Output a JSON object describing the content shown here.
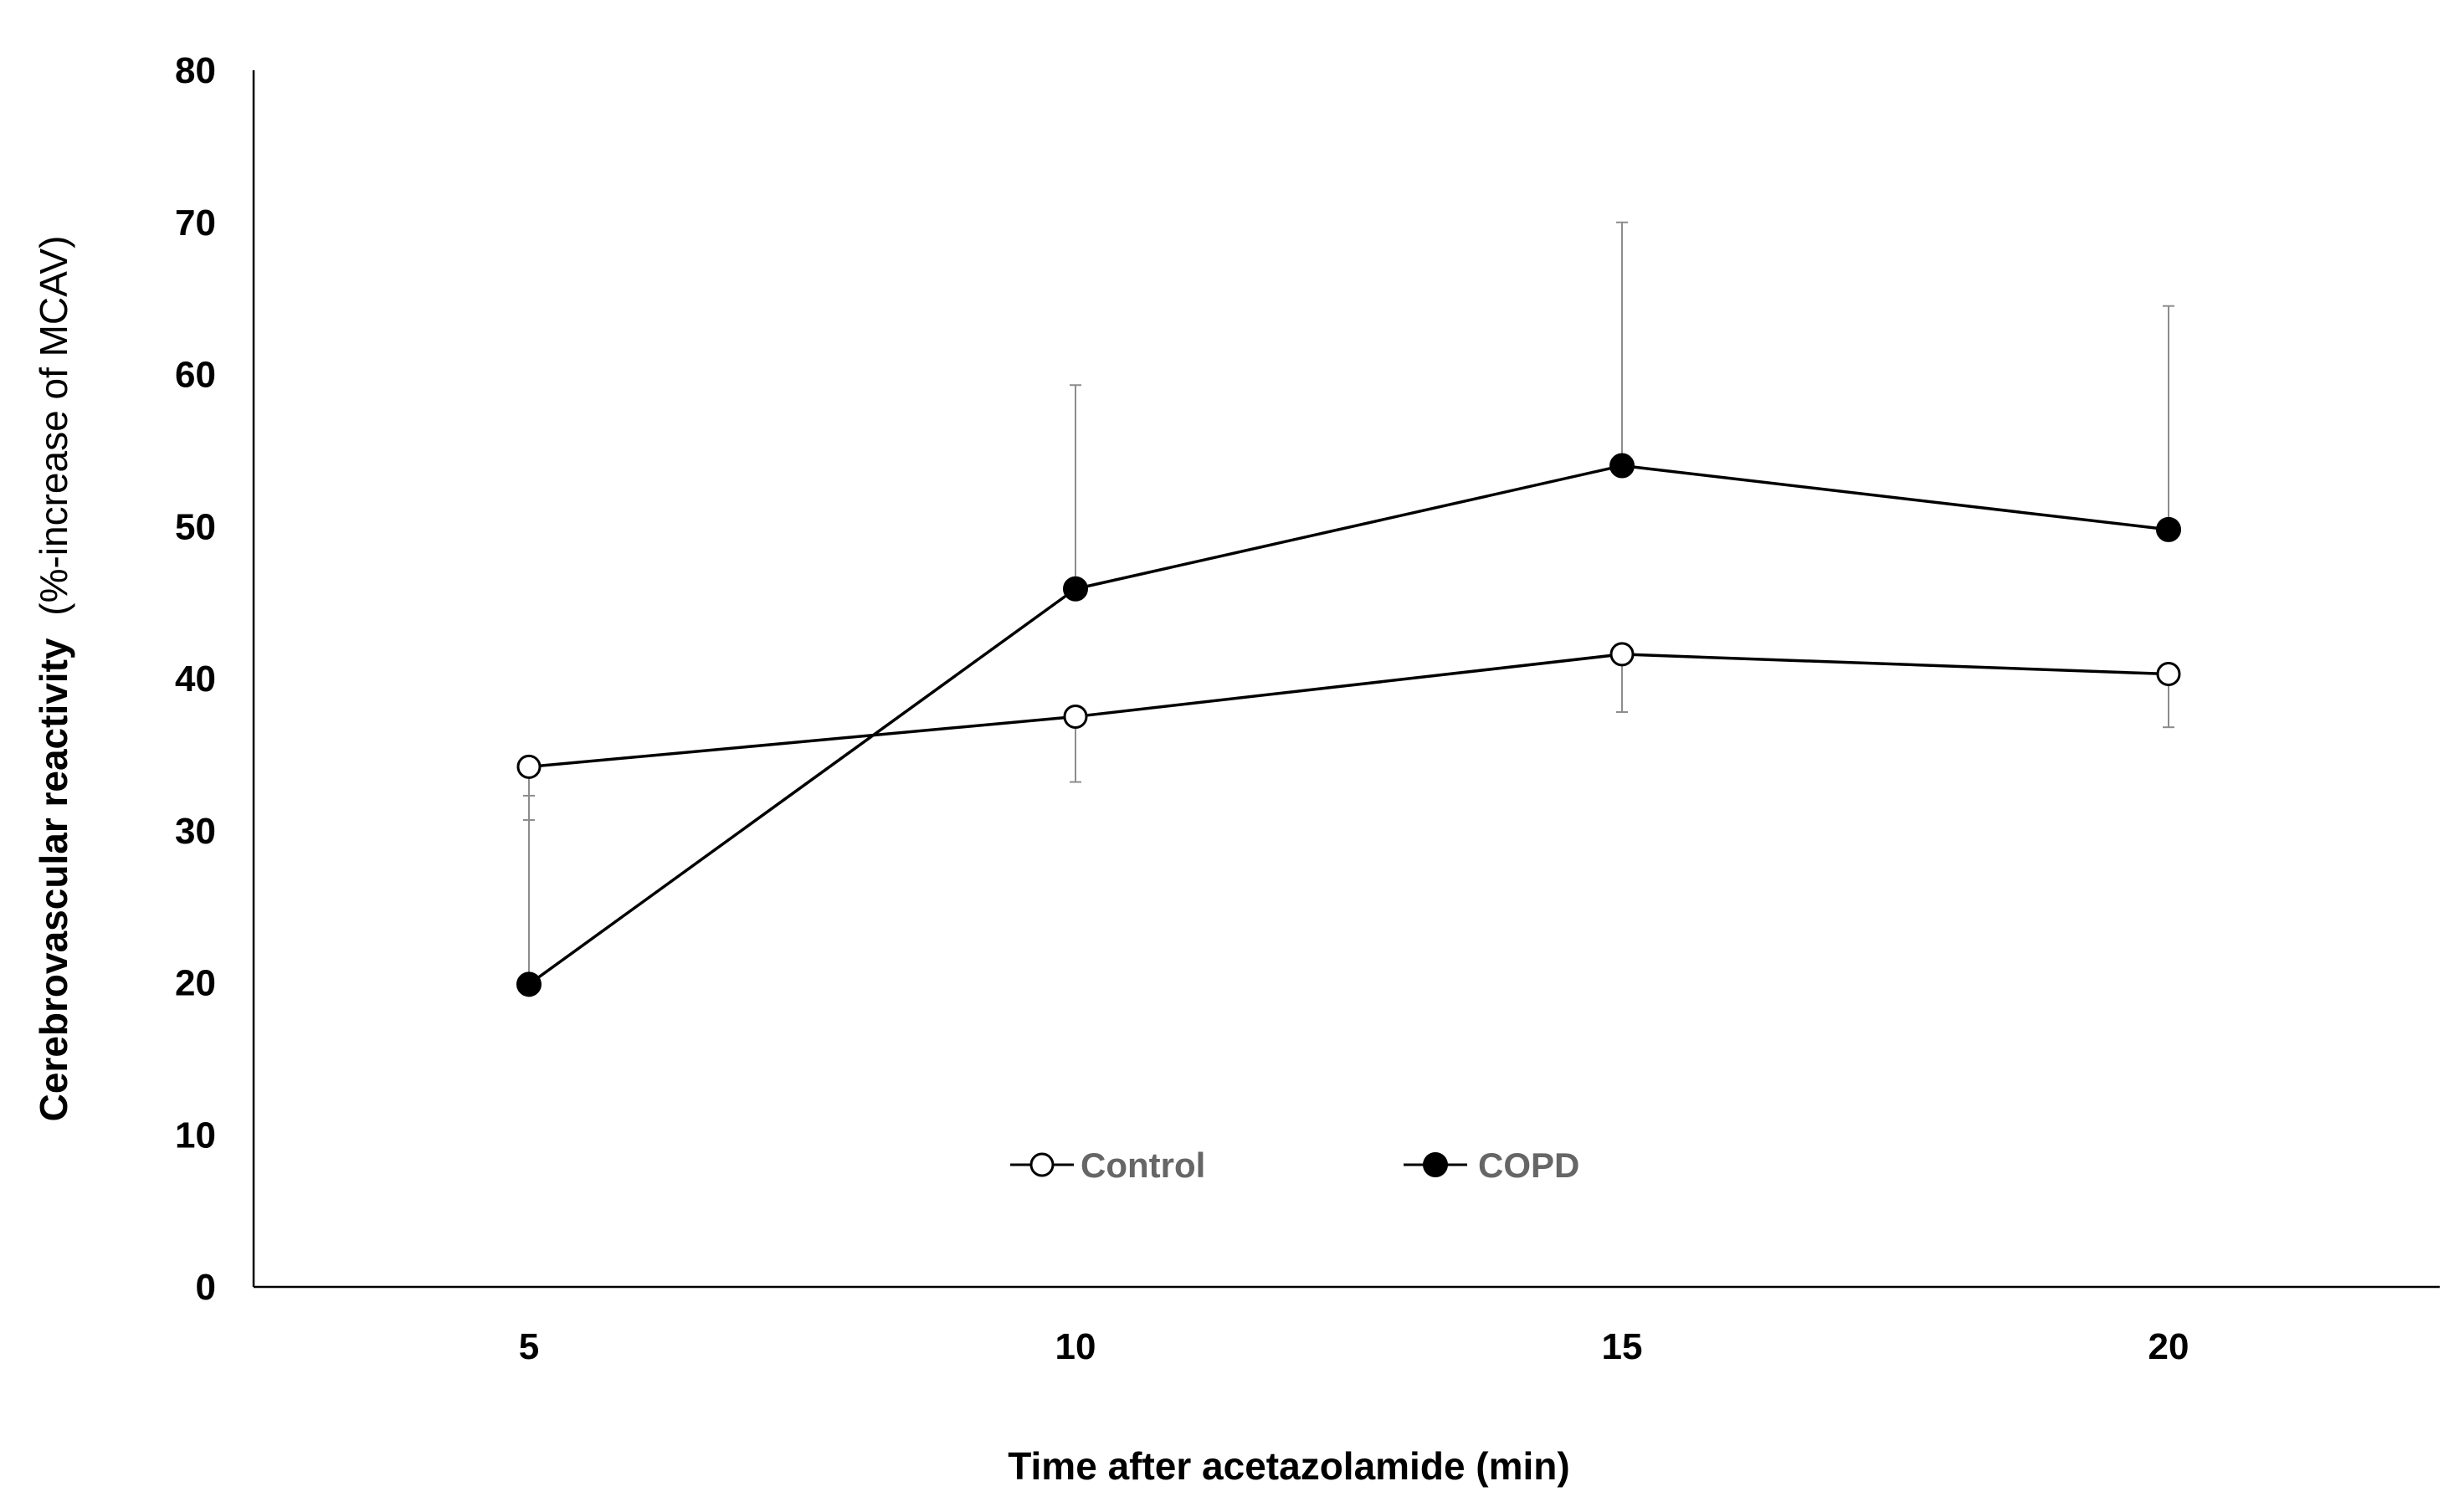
{
  "chart_data": {
    "type": "line",
    "title": "",
    "xlabel": "Time after acetazolamide (min)",
    "ylabel": "Cerebrovascular reactivity",
    "ylabel_suffix": "(%-increase of MCAV)",
    "x": [
      5,
      10,
      15,
      20
    ],
    "x_tick_labels": [
      "5",
      "10",
      "15",
      "20"
    ],
    "ylim": [
      0,
      80
    ],
    "y_ticks": [
      0,
      10,
      20,
      30,
      40,
      50,
      60,
      70,
      80
    ],
    "grid": false,
    "legend_position": "bottom-center",
    "series": [
      {
        "name": "Control",
        "marker": "open-circle",
        "color": "#000000",
        "values": [
          34.2,
          37.5,
          41.6,
          40.3
        ],
        "error_upper": [
          null,
          null,
          null,
          null
        ],
        "error_lower": [
          3.5,
          4.3,
          3.8,
          3.5
        ]
      },
      {
        "name": "COPD",
        "marker": "filled-circle",
        "color": "#000000",
        "values": [
          19.9,
          45.9,
          54.0,
          49.8
        ],
        "error_upper": [
          12.4,
          13.4,
          16.0,
          14.7
        ],
        "error_lower": [
          null,
          null,
          null,
          null
        ]
      }
    ]
  }
}
